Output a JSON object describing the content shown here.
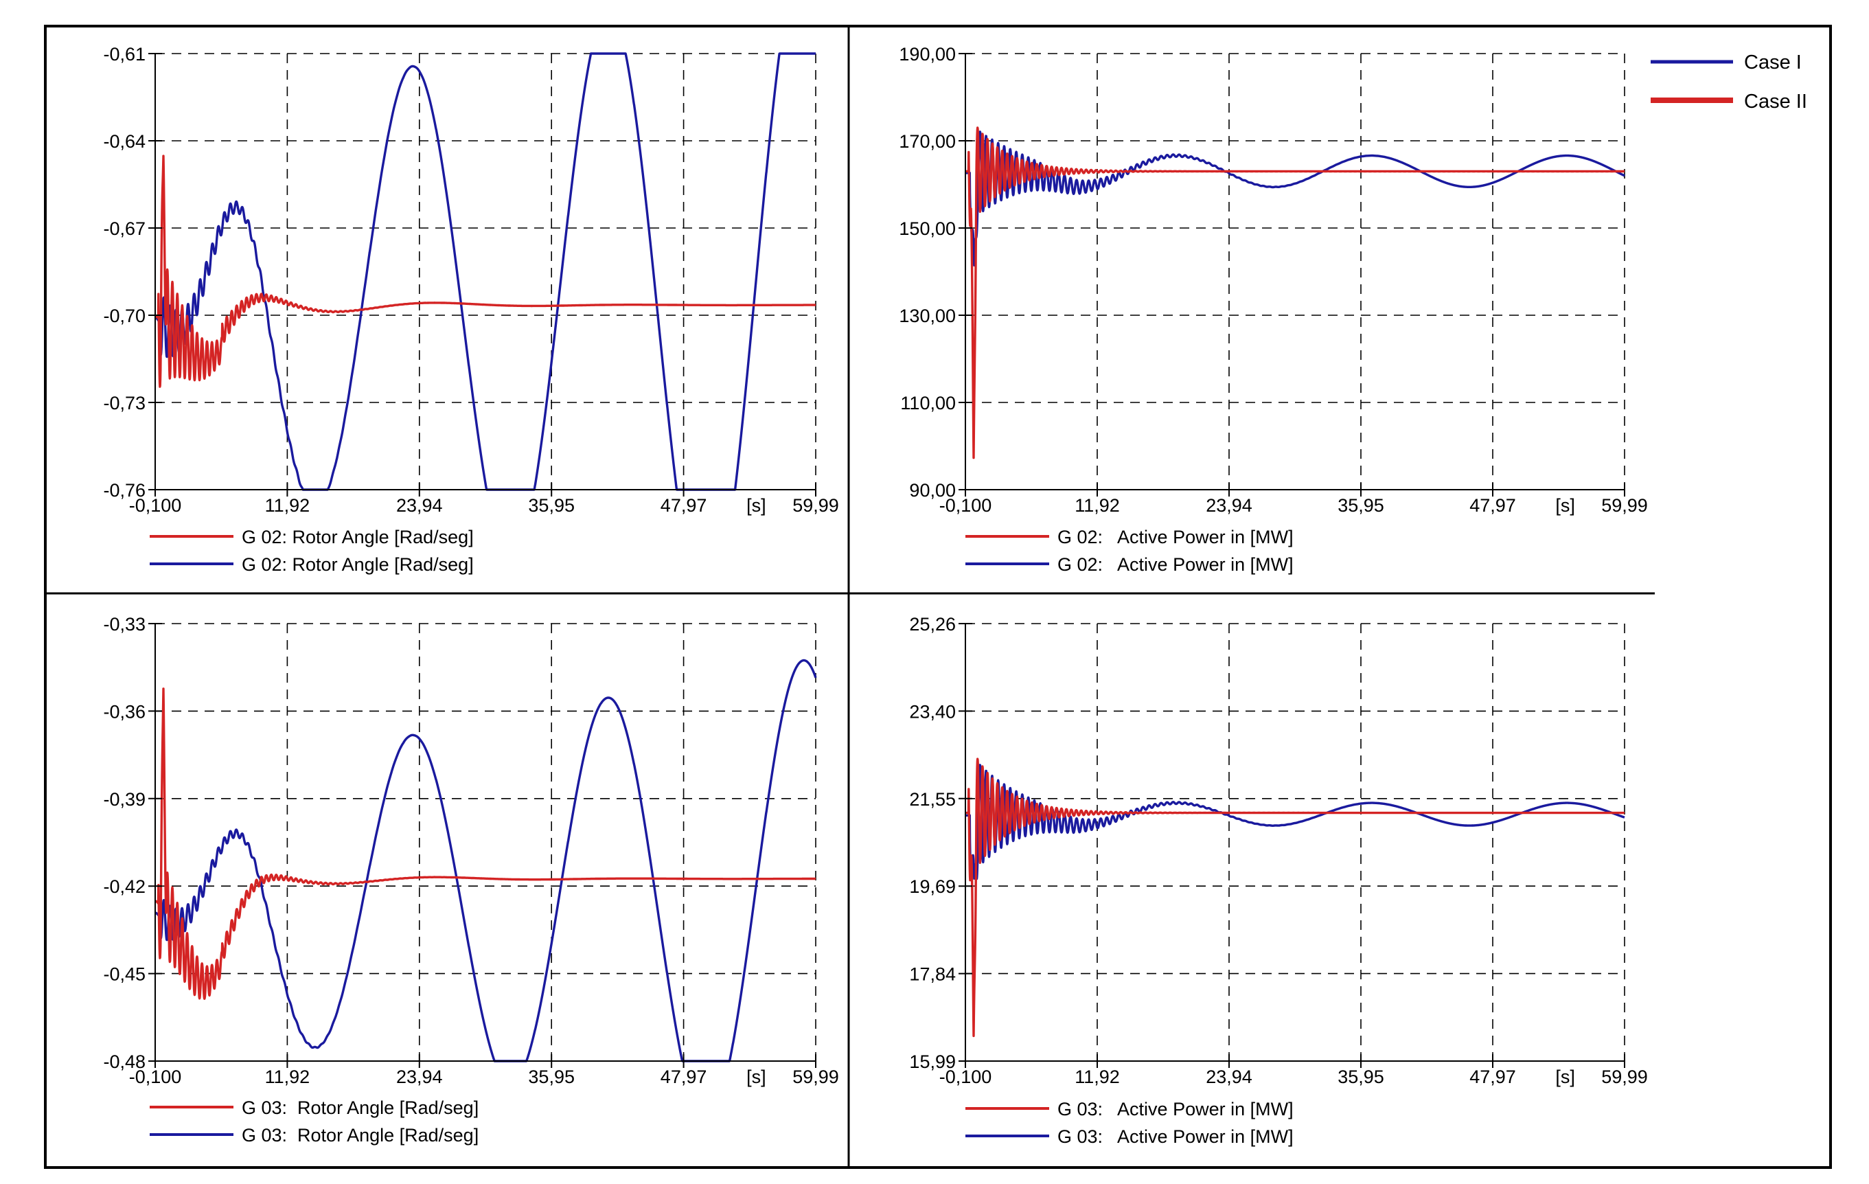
{
  "legend": {
    "entries": [
      {
        "label": "Case I",
        "color": "#1a1a9e"
      },
      {
        "label": "Case II",
        "color": "#d42424"
      }
    ]
  },
  "colors": {
    "case1": "#1a1a9e",
    "case2": "#d42424",
    "grid": "#000000",
    "frame": "#000000"
  },
  "x_unit_label": "[s]",
  "chart_data": [
    {
      "id": "g02-rotor-angle",
      "type": "line",
      "title": "",
      "xlabel": "",
      "ylabel": "",
      "x_ticks": [
        "-0,100",
        "11,92",
        "23,94",
        "35,95",
        "47,97",
        "59,99"
      ],
      "y_ticks": [
        "-0,61",
        "-0,64",
        "-0,67",
        "-0,70",
        "-0,73",
        "-0,76"
      ],
      "xlim": [
        -0.1,
        59.99
      ],
      "ylim": [
        -0.76,
        -0.61
      ],
      "legend_entries": [
        {
          "series": "Case II",
          "label": "G 02: Rotor Angle [Rad/seg]"
        },
        {
          "series": "Case I",
          "label": "G 02: Rotor Angle [Rad/seg]"
        }
      ],
      "series": [
        {
          "name": "Case I",
          "color": "#1a1a9e",
          "model": "sine",
          "base": -0.695,
          "amp": 0.055,
          "period": 17.8,
          "phase": -0.35,
          "amp_growth": 0.02,
          "osc_amp": 0.012,
          "osc_decay": 4.0
        },
        {
          "name": "Case II",
          "color": "#d42424",
          "model": "damped",
          "start": -0.698,
          "final": -0.6965,
          "dip": -0.018,
          "amp": 0.014,
          "period": 18.0,
          "decay": 9.0,
          "osc_amp": 0.026,
          "osc_decay": 3.2,
          "spike": -0.645
        }
      ]
    },
    {
      "id": "g02-active-power",
      "type": "line",
      "title": "",
      "xlabel": "",
      "ylabel": "",
      "x_ticks": [
        "-0,100",
        "11,92",
        "23,94",
        "35,95",
        "47,97",
        "59,99"
      ],
      "y_ticks": [
        "190,00",
        "170,00",
        "150,00",
        "130,00",
        "110,00",
        "90,00"
      ],
      "xlim": [
        -0.1,
        59.99
      ],
      "ylim": [
        90.0,
        190.0
      ],
      "legend_entries": [
        {
          "series": "Case II",
          "label": "G 02:   Active Power in [MW]"
        },
        {
          "series": "Case I",
          "label": "G 02:   Active Power in [MW]"
        }
      ],
      "series": [
        {
          "name": "Case I",
          "color": "#1a1a9e",
          "model": "sine",
          "base": 163.0,
          "amp": 3.6,
          "period": 17.8,
          "phase": 1.1,
          "amp_growth": 0.0,
          "osc_amp": 12.0,
          "osc_decay": 5.0
        },
        {
          "name": "Case II",
          "color": "#d42424",
          "model": "damped",
          "start": 163.0,
          "final": 163.0,
          "dip": 0.0,
          "amp": 0.0,
          "period": 18.0,
          "decay": 9.0,
          "osc_amp": 14.0,
          "osc_decay": 3.0,
          "spike": 97.0
        }
      ]
    },
    {
      "id": "g03-rotor-angle",
      "type": "line",
      "title": "",
      "xlabel": "",
      "ylabel": "",
      "x_ticks": [
        "-0,100",
        "11,92",
        "23,94",
        "35,95",
        "47,97",
        "59,99"
      ],
      "y_ticks": [
        "-0,33",
        "-0,36",
        "-0,39",
        "-0,42",
        "-0,45",
        "-0,48"
      ],
      "xlim": [
        -0.1,
        59.99
      ],
      "ylim": [
        -0.48,
        -0.33
      ],
      "legend_entries": [
        {
          "series": "Case II",
          "label": "G 03:  Rotor Angle [Rad/seg]"
        },
        {
          "series": "Case I",
          "label": "G 03:  Rotor Angle [Rad/seg]"
        }
      ],
      "series": [
        {
          "name": "Case I",
          "color": "#1a1a9e",
          "model": "sine",
          "base": -0.425,
          "amp": 0.04,
          "period": 17.8,
          "phase": -0.35,
          "amp_growth": 0.018,
          "osc_amp": 0.008,
          "osc_decay": 4.0
        },
        {
          "name": "Case II",
          "color": "#d42424",
          "model": "damped",
          "start": -0.4205,
          "final": -0.4175,
          "dip": -0.034,
          "amp": 0.008,
          "period": 18.0,
          "decay": 10.0,
          "osc_amp": 0.02,
          "osc_decay": 3.5,
          "spike": -0.352
        }
      ]
    },
    {
      "id": "g03-active-power",
      "type": "line",
      "title": "",
      "xlabel": "",
      "ylabel": "",
      "x_ticks": [
        "-0,100",
        "11,92",
        "23,94",
        "35,95",
        "47,97",
        "59,99"
      ],
      "y_ticks": [
        "25,26",
        "23,40",
        "21,55",
        "19,69",
        "17,84",
        "15,99"
      ],
      "xlim": [
        -0.1,
        59.99
      ],
      "ylim": [
        15.99,
        25.26
      ],
      "legend_entries": [
        {
          "series": "Case II",
          "label": "G 03:   Active Power in [MW]"
        },
        {
          "series": "Case I",
          "label": "G 03:   Active Power in [MW]"
        }
      ],
      "series": [
        {
          "name": "Case I",
          "color": "#1a1a9e",
          "model": "sine",
          "base": 21.22,
          "amp": 0.24,
          "period": 17.8,
          "phase": 1.1,
          "amp_growth": 0.0,
          "osc_amp": 1.4,
          "osc_decay": 4.5
        },
        {
          "name": "Case II",
          "color": "#d42424",
          "model": "damped",
          "start": 21.25,
          "final": 21.25,
          "dip": 0.0,
          "amp": 0.0,
          "period": 18.0,
          "decay": 9.0,
          "osc_amp": 1.6,
          "osc_decay": 3.0,
          "spike": 16.5
        }
      ]
    }
  ]
}
